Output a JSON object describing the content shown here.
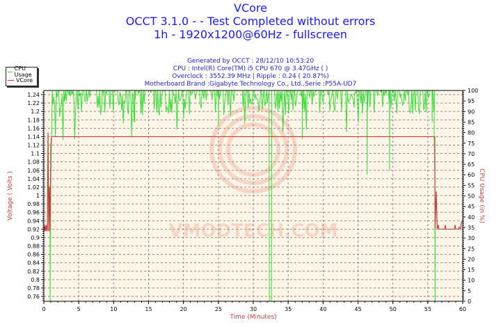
{
  "header": {
    "title": "VCore",
    "subtitle1": "OCCT 3.1.0 -  - Test Completed without errors",
    "subtitle2": "1h - 1920x1200@60Hz - fullscreen",
    "info": [
      "Generated by OCCT : 28/12/10 10:53:20",
      "CPU : Intel(R) Core(TM) i5 CPU 670 @ 3.47GHz (  )",
      "Overclock : 3552.39 MHz | Ripple : 0.24 ( 20.87%)",
      "Motherboard Brand :Gigabyte Technology Co., Ltd.,Serie :P55A-UD7"
    ]
  },
  "legend": [
    {
      "label": "CPU Usage",
      "color": "#33dd33"
    },
    {
      "label": "VCore",
      "color": "#c04040"
    }
  ],
  "watermark": "VMODTECH.COM",
  "chart_data": {
    "type": "line",
    "title": "VCore",
    "xlabel": "Time (Minutes)",
    "ylabel": "Voltage ( Volts )",
    "y2label": "CPU Usage (in %)",
    "xlim": [
      0,
      60
    ],
    "ylim": [
      0.75,
      1.25
    ],
    "y2lim": [
      0,
      100
    ],
    "grid": true,
    "legend_position": "top-left outside",
    "x_ticks": [
      "0",
      "5",
      "10",
      "15",
      "20",
      "25",
      "30",
      "35",
      "40",
      "45",
      "50",
      "55",
      "60"
    ],
    "y_ticks": [
      "1.24",
      "1.22",
      "1.2",
      "1.18",
      "1.16",
      "1.14",
      "1.12",
      "1.1",
      "1.08",
      "1.06",
      "1.04",
      "1.02",
      "1",
      "0.98",
      "0.96",
      "0.94",
      "0.92",
      "0.9",
      "0.88",
      "0.86",
      "0.84",
      "0.82",
      "0.8",
      "0.78",
      "0.76"
    ],
    "y2_ticks": [
      "100",
      "95",
      "90",
      "85",
      "80",
      "75",
      "70",
      "65",
      "60",
      "55",
      "50",
      "45",
      "40",
      "35",
      "30",
      "25",
      "20",
      "15",
      "10",
      "5",
      "0"
    ],
    "series": [
      {
        "name": "VCore",
        "axis": "left",
        "color": "#c04040",
        "x": [
          0,
          0.3,
          0.5,
          0.6,
          0.7,
          0.8,
          0.9,
          1.0,
          1.1,
          1.2,
          30,
          56.0,
          56.1,
          56.3,
          56.5,
          56.7,
          57,
          58,
          58.5,
          59,
          59.5,
          60
        ],
        "y": [
          0.93,
          0.915,
          0.93,
          1.15,
          0.91,
          1.02,
          0.915,
          1.12,
          1.14,
          1.14,
          1.14,
          1.14,
          0.92,
          1.01,
          0.92,
          0.93,
          0.92,
          0.92,
          0.93,
          0.92,
          0.925,
          0.94
        ]
      },
      {
        "name": "CPU Usage",
        "axis": "right",
        "color": "#33dd33",
        "x": [
          0,
          0.9,
          1.0,
          1.2,
          5,
          13,
          25,
          32.3,
          32.5,
          32.7,
          37,
          46.3,
          49.5,
          55.5,
          56.0,
          56.1,
          60
        ],
        "y": [
          0,
          0,
          55,
          100,
          97,
          85,
          83,
          0,
          0,
          100,
          77,
          60,
          62,
          85,
          0,
          0,
          0
        ]
      }
    ]
  }
}
